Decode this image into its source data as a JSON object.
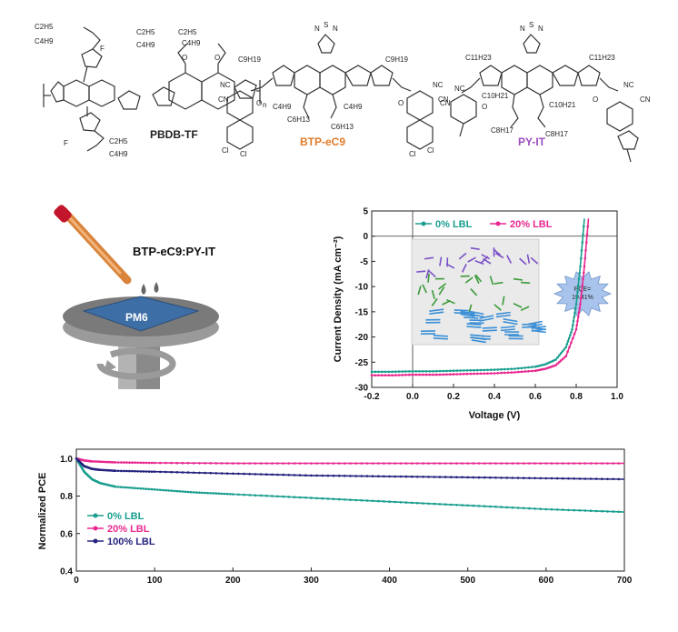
{
  "molecules": [
    {
      "name": "PBDB-TF",
      "color": "#222222",
      "atoms": {
        "f_top": "F",
        "f_bottom": "F",
        "c2h5_a": "C2H5",
        "c4h9_a": "C4H9",
        "c2h5_b": "C2H5",
        "c4h9_b": "C4H9",
        "o1": "O",
        "o2": "O",
        "c2h5_c": "C2H5",
        "c4h9_c": "C4H9",
        "c2h5_d": "C2H5",
        "c4h9_d": "C4H9",
        "n": "n"
      }
    },
    {
      "name": "BTP-eC9",
      "color": "#e07b28",
      "atoms": {
        "n_top": "N",
        "s_top": "S",
        "n_top2": "N",
        "c9h19_l": "C9H19",
        "c9h19_r": "C9H19",
        "nc_l": "NC",
        "cn_l": "CN",
        "nc_r": "NC",
        "cn_r": "CN",
        "o_l": "O",
        "o_r": "O",
        "cl1": "Cl",
        "cl2": "Cl",
        "cl3": "Cl",
        "cl4": "Cl",
        "c4h9_l": "C4H9",
        "c6h13_l": "C6H13",
        "c4h9_r": "C4H9",
        "c6h13_r": "C6H13"
      }
    },
    {
      "name": "PY-IT",
      "color": "#9b4dbf",
      "atoms": {
        "n_top": "N",
        "s_top": "S",
        "n_top2": "N",
        "c11h23_l": "C11H23",
        "c11h23_r": "C11H23",
        "nc_l": "NC",
        "cn_l": "CN",
        "nc_r": "NC",
        "cn_r": "CN",
        "o_l": "O",
        "o_r": "O",
        "c10h21_l": "C10H21",
        "c8h17_l": "C8H17",
        "c10h21_r": "C10H21",
        "c8h17_r": "C8H17"
      }
    }
  ],
  "device": {
    "blend_label": "BTP-eC9:PY-IT",
    "substrate_label": "PM6"
  },
  "inset": {
    "pce_label": "PCE=\n19.41%",
    "pce_line1": "PCE=",
    "pce_line2": "19.41%"
  },
  "chart_data": [
    {
      "type": "line",
      "xlabel": "Voltage (V)",
      "ylabel": "Current Density (mA cm⁻²)",
      "xlim": [
        -0.2,
        1.0
      ],
      "ylim": [
        -30,
        5
      ],
      "xticks": [
        "-0.2",
        "0.0",
        "0.2",
        "0.4",
        "0.6",
        "0.8",
        "1.0"
      ],
      "yticks": [
        "5",
        "0",
        "-5",
        "-10",
        "-15",
        "-20",
        "-25",
        "-30"
      ],
      "legend_position": "top",
      "series": [
        {
          "name": "0% LBL",
          "color": "#1a9e8f",
          "x": [
            -0.2,
            -0.1,
            0.0,
            0.1,
            0.2,
            0.3,
            0.4,
            0.5,
            0.6,
            0.65,
            0.7,
            0.75,
            0.78,
            0.8,
            0.82,
            0.84
          ],
          "y": [
            -26.9,
            -26.9,
            -26.8,
            -26.8,
            -26.7,
            -26.6,
            -26.5,
            -26.3,
            -25.9,
            -25.4,
            -24.5,
            -22.0,
            -18.5,
            -13.5,
            -6.0,
            3.5
          ]
        },
        {
          "name": "20% LBL",
          "color": "#e8278f",
          "x": [
            -0.2,
            -0.1,
            0.0,
            0.1,
            0.2,
            0.3,
            0.4,
            0.5,
            0.6,
            0.65,
            0.7,
            0.75,
            0.8,
            0.82,
            0.84,
            0.86
          ],
          "y": [
            -27.6,
            -27.6,
            -27.5,
            -27.5,
            -27.4,
            -27.3,
            -27.2,
            -27.0,
            -26.7,
            -26.3,
            -25.6,
            -23.8,
            -18.5,
            -13.5,
            -6.0,
            3.5
          ]
        }
      ]
    },
    {
      "type": "line",
      "xlabel": "",
      "ylabel": "Normalized PCE",
      "xlim": [
        0,
        700
      ],
      "ylim": [
        0.4,
        1.05
      ],
      "xticks": [
        "0",
        "100",
        "200",
        "300",
        "400",
        "500",
        "600",
        "700"
      ],
      "yticks": [
        "1.0",
        "0.8",
        "0.6",
        "0.4"
      ],
      "legend_position": "center-left",
      "series": [
        {
          "name": "0% LBL",
          "color": "#1a9e8f",
          "x": [
            0,
            10,
            20,
            30,
            50,
            100,
            150,
            200,
            300,
            400,
            500,
            600,
            700
          ],
          "y": [
            1.0,
            0.93,
            0.89,
            0.87,
            0.85,
            0.835,
            0.82,
            0.81,
            0.79,
            0.77,
            0.75,
            0.73,
            0.715
          ]
        },
        {
          "name": "20% LBL",
          "color": "#e8278f",
          "x": [
            0,
            10,
            20,
            50,
            100,
            200,
            300,
            400,
            500,
            600,
            700
          ],
          "y": [
            1.0,
            0.99,
            0.985,
            0.98,
            0.977,
            0.975,
            0.975,
            0.975,
            0.975,
            0.975,
            0.975
          ]
        },
        {
          "name": "100% LBL",
          "color": "#25237e",
          "x": [
            0,
            10,
            20,
            30,
            50,
            100,
            200,
            300,
            400,
            500,
            600,
            700
          ],
          "y": [
            1.0,
            0.96,
            0.945,
            0.94,
            0.935,
            0.93,
            0.92,
            0.91,
            0.905,
            0.9,
            0.895,
            0.89
          ]
        }
      ]
    }
  ]
}
